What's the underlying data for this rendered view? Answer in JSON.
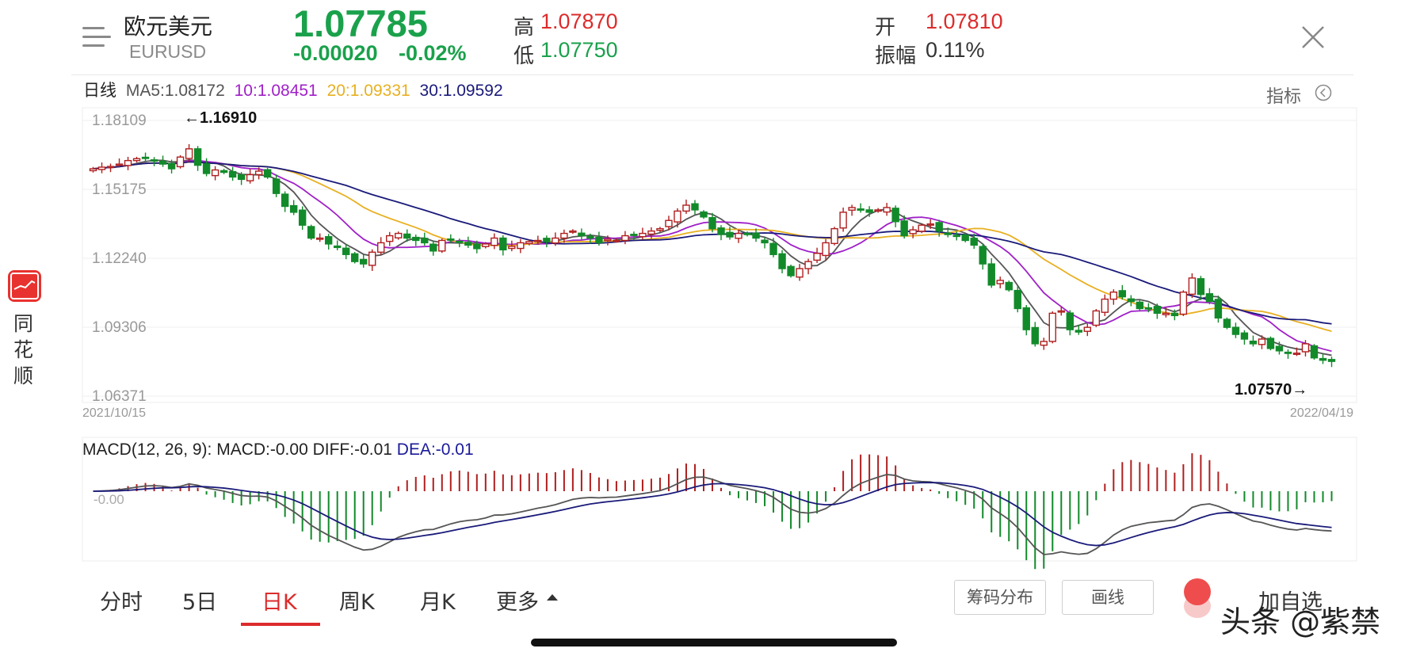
{
  "header": {
    "name": "欧元美元",
    "code": "EURUSD",
    "price": "1.07785",
    "change": "-0.00020",
    "change_pct": "-0.02%",
    "high_label": "高",
    "high": "1.07870",
    "low_label": "低",
    "low": "1.07750",
    "open_label": "开",
    "open": "1.07810",
    "amplitude_label": "振幅",
    "amplitude": "0.11%"
  },
  "ma_row": {
    "period_label": "日线",
    "ma5": "MA5:1.08172",
    "ma10": "10:1.08451",
    "ma20": "20:1.09331",
    "ma30": "30:1.09592"
  },
  "indicator_label": "指标",
  "chart_data": {
    "type": "candlestick",
    "y_ticks": [
      "1.18109",
      "1.15175",
      "1.12240",
      "1.09306",
      "1.06371"
    ],
    "ylim": [
      1.06371,
      1.18109
    ],
    "x_start": "2021/10/15",
    "x_end": "2022/04/19",
    "max_annotation": "←1.16910",
    "min_annotation": "1.07570→",
    "close": [
      1.1605,
      1.1612,
      1.1615,
      1.1625,
      1.164,
      1.1648,
      1.1652,
      1.164,
      1.1625,
      1.1605,
      1.1655,
      1.169,
      1.162,
      1.1585,
      1.16,
      1.159,
      1.157,
      1.156,
      1.158,
      1.1595,
      1.157,
      1.15,
      1.1445,
      1.142,
      1.1365,
      1.131,
      1.131,
      1.1285,
      1.127,
      1.124,
      1.121,
      1.12,
      1.125,
      1.129,
      1.132,
      1.133,
      1.131,
      1.13,
      1.129,
      1.1255,
      1.13,
      1.1305,
      1.1295,
      1.128,
      1.1265,
      1.1285,
      1.131,
      1.126,
      1.1275,
      1.129,
      1.1295,
      1.13,
      1.1295,
      1.131,
      1.133,
      1.134,
      1.132,
      1.131,
      1.129,
      1.1305,
      1.13,
      1.132,
      1.1325,
      1.133,
      1.134,
      1.135,
      1.1385,
      1.1425,
      1.145,
      1.143,
      1.14,
      1.135,
      1.1325,
      1.1315,
      1.133,
      1.1325,
      1.131,
      1.129,
      1.124,
      1.118,
      1.115,
      1.118,
      1.121,
      1.1245,
      1.129,
      1.135,
      1.142,
      1.144,
      1.143,
      1.142,
      1.143,
      1.144,
      1.138,
      1.132,
      1.1345,
      1.1365,
      1.137,
      1.134,
      1.1325,
      1.132,
      1.13,
      1.128,
      1.12,
      1.111,
      1.113,
      1.109,
      1.101,
      1.092,
      1.086,
      1.087,
      1.099,
      1.1,
      1.092,
      1.091,
      1.093,
      1.1,
      1.105,
      1.108,
      1.106,
      1.104,
      1.101,
      1.101,
      1.099,
      1.099,
      1.098,
      1.108,
      1.114,
      1.107,
      1.104,
      1.097,
      1.093,
      1.09,
      1.088,
      1.086,
      1.088,
      1.084,
      1.083,
      1.082,
      1.082,
      1.086,
      1.08,
      1.079,
      1.0785
    ],
    "ma_series": [
      "MA5",
      "MA10",
      "MA20",
      "MA30"
    ],
    "ma_colors": [
      "#555555",
      "#a020c8",
      "#e8b020",
      "#1a1a7a"
    ]
  },
  "macd": {
    "label": "MACD(12, 26, 9): MACD:-0.00 DIFF:-0.01 ",
    "dea": "DEA:-0.01",
    "zero_label": "-0.00"
  },
  "tabs": [
    "分时",
    "5日",
    "日K",
    "周K",
    "月K",
    "更多"
  ],
  "buttons": {
    "chip": "筹码分布",
    "draw": "画线",
    "add_fav": "加自选"
  },
  "app": {
    "name": "同花顺"
  },
  "watermark": "头条 @紫禁",
  "colors": {
    "up": "#b01e1e",
    "down": "#128a2a",
    "accent_red": "#dd2b2b",
    "accent_green": "#1aa14b"
  }
}
